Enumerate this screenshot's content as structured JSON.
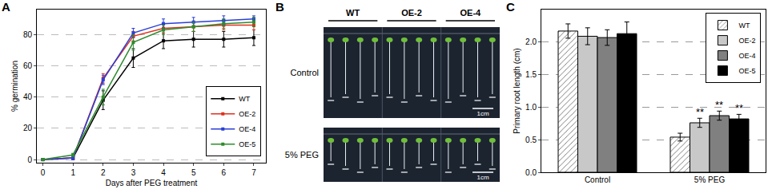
{
  "chart_data": [
    {
      "type": "line",
      "title": "A",
      "x": [
        0,
        1,
        2,
        3,
        4,
        5,
        6,
        7
      ],
      "x_label": "Days after PEG treatment",
      "y_label": "% germination",
      "xlim": [
        -0.2,
        7.4
      ],
      "xticks": [
        0,
        1,
        2,
        3,
        4,
        5,
        6,
        7
      ],
      "ylim": [
        -2,
        96
      ],
      "yticks": [
        0,
        20,
        40,
        60,
        80
      ],
      "grid": true,
      "legend": "lower right",
      "marker": "square",
      "series": [
        {
          "name": "WT",
          "color": "#000000",
          "values": [
            0,
            1,
            38,
            65,
            76,
            77,
            77,
            78
          ],
          "errors": [
            0,
            1,
            6,
            6,
            5,
            5,
            5,
            5
          ]
        },
        {
          "name": "OE-2",
          "color": "#e0301e",
          "values": [
            0,
            1,
            52,
            79,
            84,
            85,
            86,
            86
          ],
          "errors": [
            0,
            1,
            3,
            3,
            3,
            3,
            3,
            3
          ]
        },
        {
          "name": "OE-4",
          "color": "#2a3fd6",
          "values": [
            0,
            1,
            51,
            81,
            87,
            88,
            89,
            90
          ],
          "errors": [
            0,
            1,
            3,
            3,
            3,
            3,
            3,
            2
          ]
        },
        {
          "name": "OE-5",
          "color": "#2e8b2e",
          "values": [
            0,
            3,
            40,
            75,
            83,
            85,
            87,
            88
          ],
          "errors": [
            0,
            1,
            5,
            5,
            3,
            3,
            3,
            3
          ]
        }
      ]
    },
    {
      "type": "bar",
      "title": "C",
      "categories": [
        "Control",
        "5% PEG"
      ],
      "y_label": "Primary root length (cm)",
      "ylim": [
        0,
        2.5
      ],
      "yticks": [
        {
          "value": 0,
          "label": "0.0"
        },
        0.5,
        {
          "value": 1,
          "label": "1.0"
        },
        1.5,
        {
          "value": 2,
          "label": "2.0"
        }
      ],
      "grid": true,
      "legend": "upper right",
      "series": [
        {
          "name": "WT",
          "color": "#ffffff",
          "marker": "hatch",
          "values": [
            2.17,
            0.54
          ],
          "errors": [
            0.11,
            0.06
          ]
        },
        {
          "name": "OE-2",
          "color": "#c8c8c8",
          "values": [
            2.09,
            0.76
          ],
          "errors": [
            0.13,
            0.07
          ]
        },
        {
          "name": "OE-4",
          "color": "#808080",
          "values": [
            2.07,
            0.87
          ],
          "errors": [
            0.12,
            0.07
          ]
        },
        {
          "name": "OE-5",
          "color": "#000000",
          "values": [
            2.13,
            0.82
          ],
          "errors": [
            0.18,
            0.07
          ]
        }
      ],
      "annotations": [
        {
          "category": 1,
          "series": "OE-2",
          "text": "**"
        },
        {
          "category": 1,
          "series": "OE-4",
          "text": "**"
        },
        {
          "category": 1,
          "series": "OE-5",
          "text": "**"
        }
      ]
    }
  ],
  "panel_b": {
    "title": "B",
    "columns": [
      "WT",
      "OE-2",
      "OE-4"
    ],
    "rows": [
      "Control",
      "5% PEG"
    ],
    "scale_bar": "1cm"
  }
}
